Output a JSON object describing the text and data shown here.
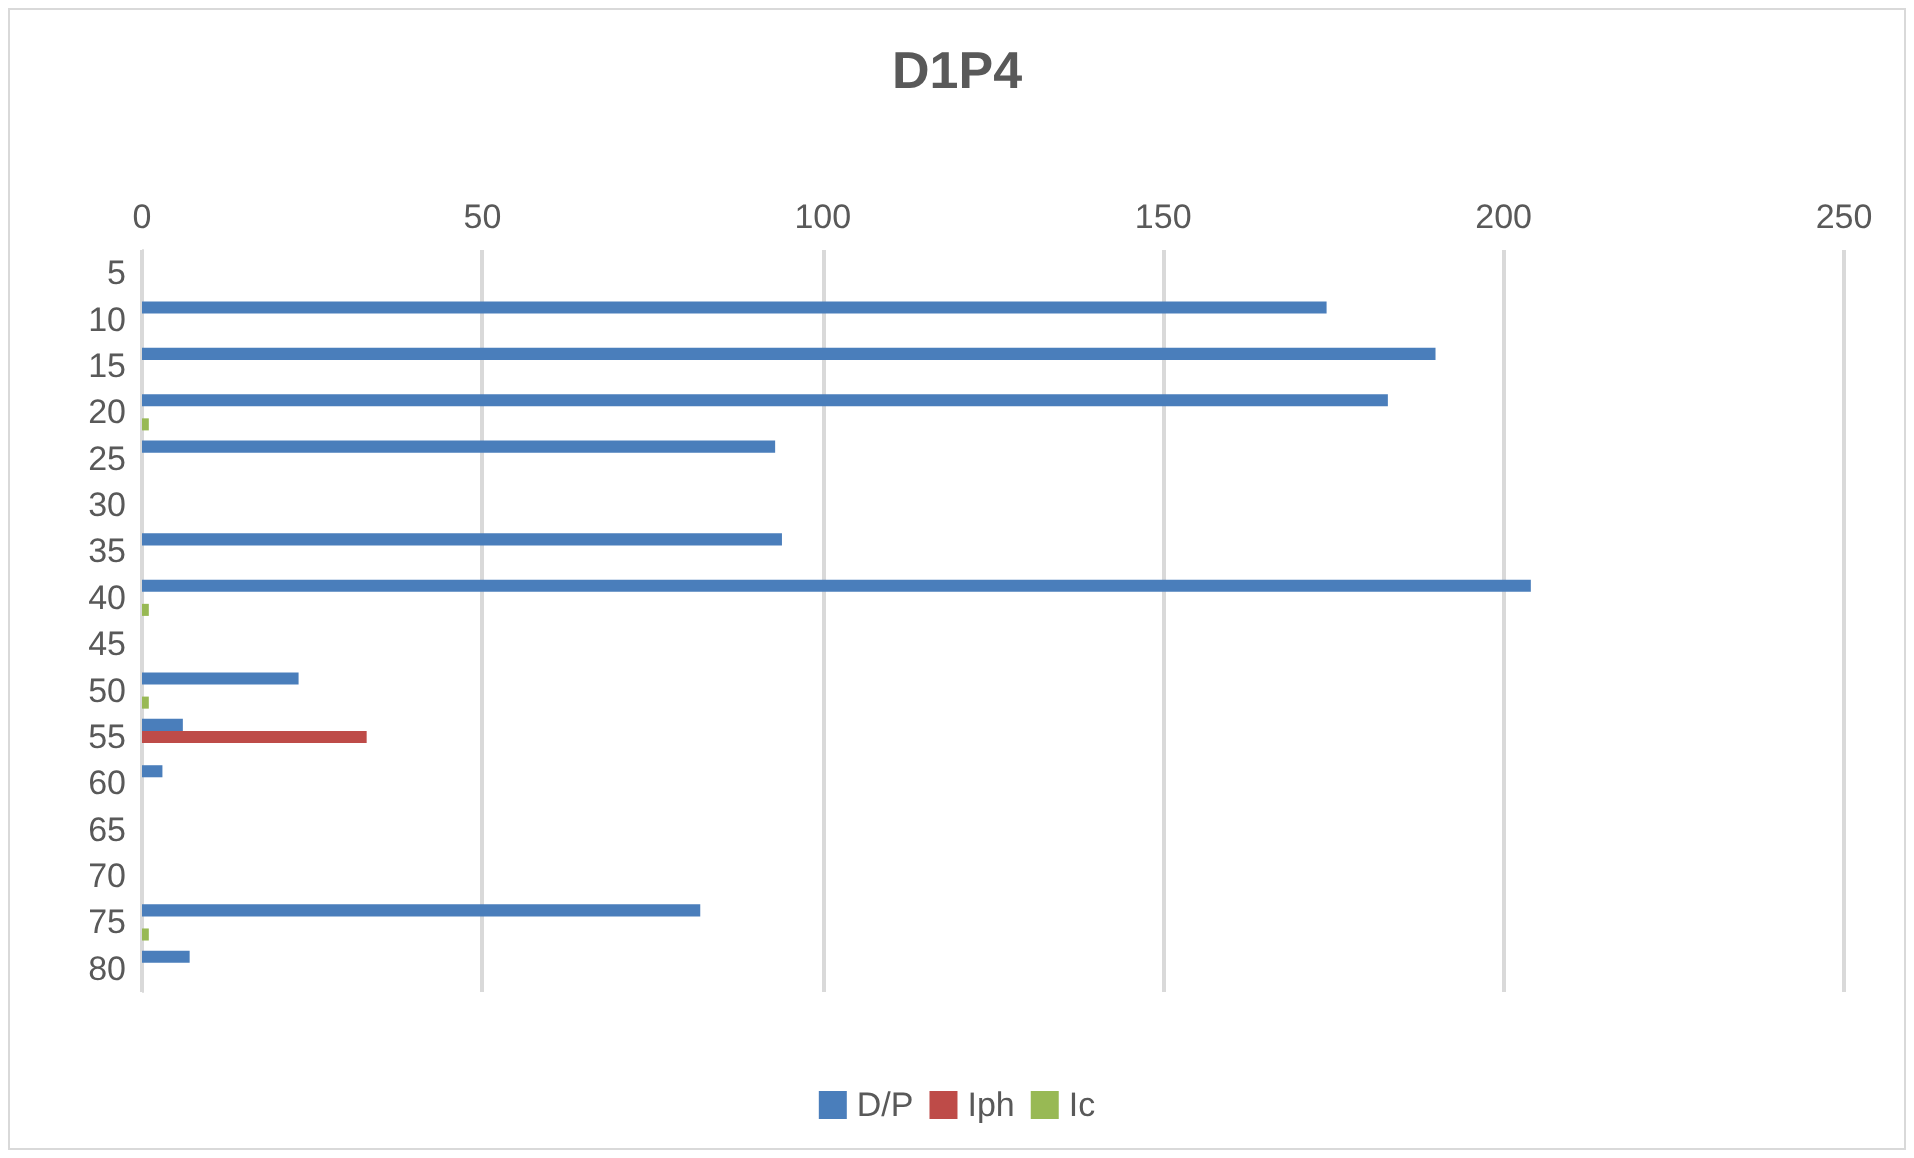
{
  "chart_data": {
    "type": "bar",
    "title": "D1P4",
    "orientation": "horizontal",
    "categories": [
      "5",
      "10",
      "15",
      "20",
      "25",
      "30",
      "35",
      "40",
      "45",
      "50",
      "55",
      "60",
      "65",
      "70",
      "75",
      "80"
    ],
    "series": [
      {
        "name": "D/P",
        "color": "#4a7ebb",
        "values": [
          null,
          174,
          190,
          183,
          93,
          null,
          94,
          204,
          null,
          23,
          6,
          3,
          null,
          null,
          82,
          7
        ]
      },
      {
        "name": "Iph",
        "color": "#be4b48",
        "values": [
          null,
          null,
          null,
          null,
          null,
          null,
          null,
          null,
          null,
          null,
          33,
          null,
          null,
          null,
          null,
          null
        ]
      },
      {
        "name": "Ic",
        "color": "#98b954",
        "values": [
          null,
          null,
          null,
          1,
          null,
          null,
          null,
          1,
          null,
          1,
          null,
          null,
          null,
          null,
          1,
          null
        ]
      }
    ],
    "xlim": [
      0,
      250
    ],
    "xticks": [
      0,
      50,
      100,
      150,
      200,
      250
    ],
    "grid": "x",
    "legend": "bottom"
  }
}
